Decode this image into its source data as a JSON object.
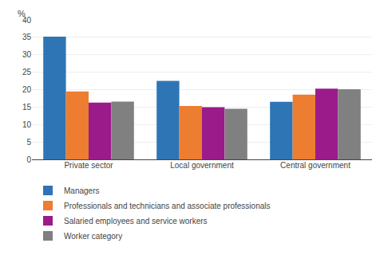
{
  "chart_data": {
    "type": "bar",
    "categories": [
      "Private sector",
      "Local government",
      "Central government"
    ],
    "series": [
      {
        "name": "Managers",
        "color": "#2E75B6",
        "values": [
          35.2,
          22.5,
          16.5
        ]
      },
      {
        "name": "Professionals and technicians and associate professionals",
        "color": "#ED7D31",
        "values": [
          19.5,
          15.3,
          18.6
        ]
      },
      {
        "name": "Salaried employees and service workers",
        "color": "#9B1B8A",
        "values": [
          16.3,
          15.0,
          20.3
        ]
      },
      {
        "name": "Worker category",
        "color": "#808080",
        "values": [
          16.6,
          14.5,
          20.1
        ]
      }
    ],
    "ylabel": "%",
    "ylim": [
      0,
      40
    ],
    "yticks": [
      0,
      5,
      10,
      15,
      20,
      25,
      30,
      35,
      40
    ],
    "grid": true,
    "legend": "bottom"
  }
}
